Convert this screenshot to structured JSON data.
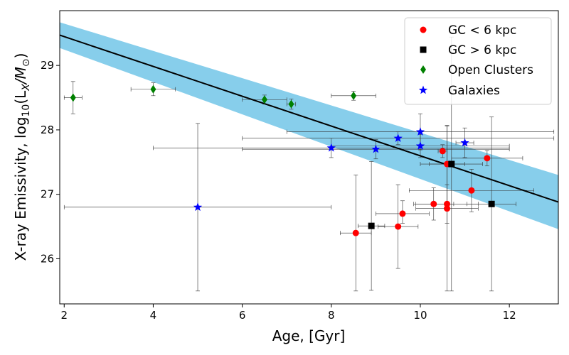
{
  "chart_data": {
    "type": "scatter",
    "title": "",
    "xlabel": "Age, [Gyr]",
    "ylabel_text": "X-ray Emissivity, log",
    "ylabel_sub": "10",
    "ylabel_math": "(L",
    "ylabel_math_sub": "X",
    "ylabel_math_tail": "/M",
    "ylabel_sun": "⊙",
    "ylabel_close": ")",
    "xlim": [
      1.9,
      13.1
    ],
    "ylim": [
      25.3,
      29.85
    ],
    "xticks": [
      2,
      4,
      6,
      8,
      10,
      12
    ],
    "yticks": [
      26,
      27,
      28,
      29
    ],
    "grid": false,
    "legend_position": "top-right",
    "fit_line": {
      "x": [
        1.9,
        13.1
      ],
      "y": [
        29.47,
        26.88
      ],
      "color": "#000000"
    },
    "fit_band": {
      "x": [
        1.9,
        13.1
      ],
      "upper": [
        29.67,
        27.3
      ],
      "lower": [
        29.27,
        26.46
      ],
      "color": "#87ceeb"
    },
    "series": [
      {
        "name": "GC < 6 kpc",
        "marker": "circle",
        "color": "#ff0000",
        "points": [
          {
            "x": 8.55,
            "y": 26.4,
            "xerr": [
              0.35,
              0.35
            ],
            "yerr": [
              0.9,
              0.9
            ]
          },
          {
            "x": 9.5,
            "y": 26.5,
            "xerr": [
              0.45,
              0.45
            ],
            "yerr": [
              0.65,
              0.65
            ]
          },
          {
            "x": 9.6,
            "y": 26.7,
            "xerr": [
              0.6,
              0.6
            ],
            "yerr": [
              0.15,
              0.2
            ]
          },
          {
            "x": 10.3,
            "y": 26.85,
            "xerr": [
              0.45,
              0.45
            ],
            "yerr": [
              0.25,
              0.25
            ]
          },
          {
            "x": 10.6,
            "y": 26.85,
            "xerr": [
              0.7,
              0.7
            ],
            "yerr": [
              0.3,
              0.3
            ]
          },
          {
            "x": 10.6,
            "y": 26.78,
            "xerr": [
              0.7,
              0.7
            ],
            "yerr": [
              1.28,
              1.28
            ]
          },
          {
            "x": 10.5,
            "y": 27.67,
            "xerr": [
              0.1,
              0.1
            ],
            "yerr": [
              0.1,
              0.1
            ]
          },
          {
            "x": 10.6,
            "y": 27.47,
            "xerr": [
              0.4,
              0.4
            ],
            "yerr": [
              0.6,
              0.6
            ]
          },
          {
            "x": 11.15,
            "y": 27.06,
            "xerr": [
              1.4,
              1.4
            ],
            "yerr": [
              0.33,
              0.33
            ]
          },
          {
            "x": 11.5,
            "y": 27.56,
            "xerr": [
              0.8,
              0.8
            ],
            "yerr": [
              0.12,
              0.12
            ]
          }
        ]
      },
      {
        "name": "GC > 6 kpc",
        "marker": "square",
        "color": "#000000",
        "points": [
          {
            "x": 8.9,
            "y": 26.51,
            "xerr": [
              0.3,
              0.3
            ],
            "yerr": [
              1.0,
              1.0
            ]
          },
          {
            "x": 10.7,
            "y": 27.47,
            "xerr": [
              0.7,
              0.7
            ],
            "yerr": [
              1.97,
              1.97
            ]
          },
          {
            "x": 11.6,
            "y": 26.85,
            "xerr": [
              0.55,
              0.55
            ],
            "yerr": [
              1.35,
              1.35
            ]
          }
        ]
      },
      {
        "name": "Open Clusters",
        "marker": "diamond",
        "color": "#008000",
        "points": [
          {
            "x": 2.2,
            "y": 28.5,
            "xerr": [
              0.2,
              0.2
            ],
            "yerr": [
              0.25,
              0.25
            ]
          },
          {
            "x": 4.0,
            "y": 28.63,
            "xerr": [
              0.5,
              0.5
            ],
            "yerr": [
              0.1,
              0.1
            ]
          },
          {
            "x": 6.5,
            "y": 28.47,
            "xerr": [
              0.5,
              0.5
            ],
            "yerr": [
              0.07,
              0.07
            ]
          },
          {
            "x": 7.1,
            "y": 28.4,
            "xerr": [
              0.1,
              0.1
            ],
            "yerr": [
              0.08,
              0.08
            ]
          },
          {
            "x": 8.5,
            "y": 28.53,
            "xerr": [
              0.5,
              0.5
            ],
            "yerr": [
              0.07,
              0.07
            ]
          }
        ]
      },
      {
        "name": "Galaxies",
        "marker": "star",
        "color": "#0000ff",
        "points": [
          {
            "x": 5.0,
            "y": 26.8,
            "xerr": [
              3.0,
              3.0
            ],
            "yerr": [
              1.3,
              1.3
            ]
          },
          {
            "x": 8.0,
            "y": 27.72,
            "xerr": [
              4.0,
              4.0
            ],
            "yerr": [
              0.15,
              0.15
            ]
          },
          {
            "x": 9.0,
            "y": 27.7,
            "xerr": [
              3.0,
              3.0
            ],
            "yerr": [
              0.15,
              0.15
            ]
          },
          {
            "x": 9.5,
            "y": 27.87,
            "xerr": [
              3.5,
              3.5
            ],
            "yerr": [
              0.1,
              0.1
            ]
          },
          {
            "x": 10.0,
            "y": 27.97,
            "xerr": [
              3.0,
              3.0
            ],
            "yerr": [
              0.28,
              0.28
            ]
          },
          {
            "x": 10.0,
            "y": 27.75,
            "xerr": [
              2.0,
              2.0
            ],
            "yerr": [
              0.18,
              0.18
            ]
          },
          {
            "x": 11.0,
            "y": 27.8,
            "xerr": [
              0.2,
              0.2
            ],
            "yerr": [
              0.23,
              0.23
            ]
          }
        ]
      }
    ]
  }
}
